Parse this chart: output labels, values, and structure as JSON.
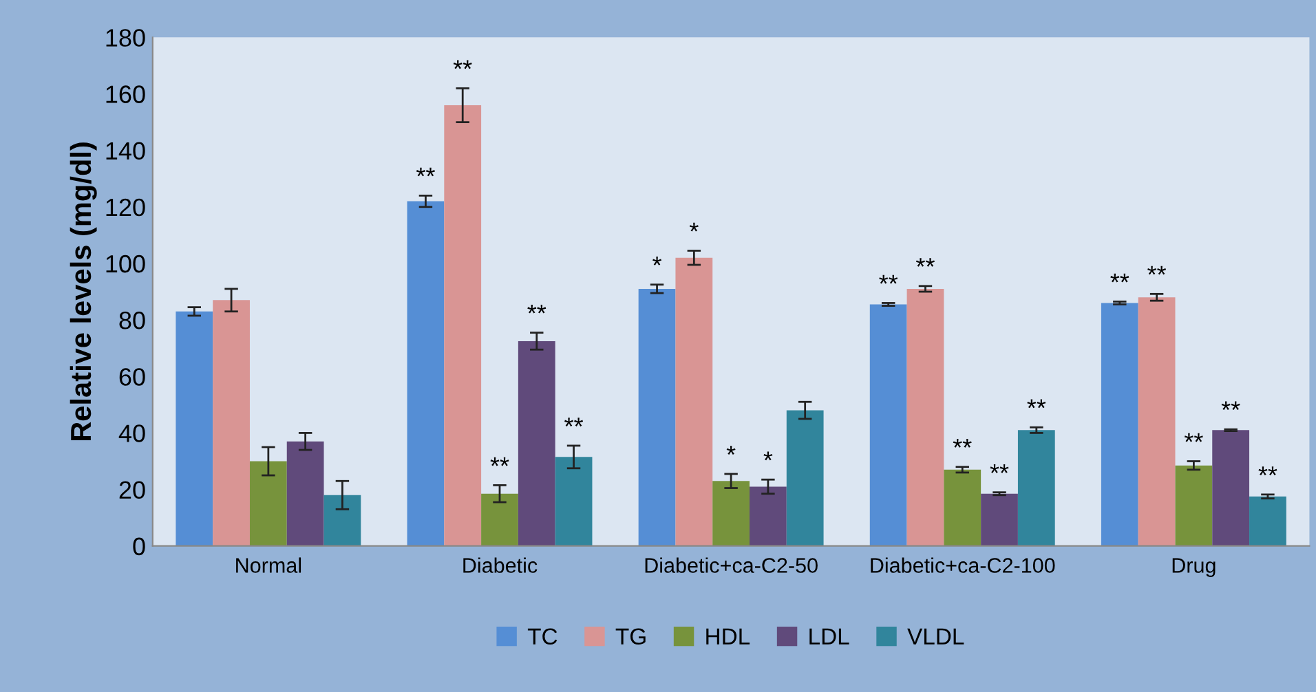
{
  "chart_data": {
    "type": "bar",
    "ylabel": "Relative levels (mg/dl)",
    "categories": [
      "Normal",
      "Diabetic",
      "Diabetic+ca-C2-50",
      "Diabetic+ca-C2-100",
      "Drug"
    ],
    "series": [
      {
        "name": "TC",
        "color": "#558ed5",
        "values": [
          83,
          122,
          91,
          85.5,
          86
        ],
        "errors": [
          1.5,
          2,
          1.5,
          0.5,
          0.5
        ],
        "value_labels": [
          null,
          "**",
          "*",
          "**",
          "**"
        ]
      },
      {
        "name": "TG",
        "color": "#d99594",
        "values": [
          87,
          156,
          102,
          91,
          88
        ],
        "errors": [
          4,
          6,
          2.5,
          1,
          1.2
        ],
        "value_labels": [
          null,
          "**",
          "*",
          "**",
          "**"
        ]
      },
      {
        "name": "HDL",
        "color": "#77933c",
        "values": [
          30,
          18.5,
          23,
          27,
          28.5
        ],
        "errors": [
          5,
          3,
          2.5,
          1,
          1.5
        ],
        "value_labels": [
          null,
          "**",
          "*",
          "**",
          "**"
        ]
      },
      {
        "name": "LDL",
        "color": "#604a7b",
        "values": [
          37,
          72.5,
          21,
          18.5,
          41
        ],
        "errors": [
          3,
          3,
          2.5,
          0.5,
          0.3
        ],
        "value_labels": [
          null,
          "**",
          "*",
          "**",
          "**"
        ]
      },
      {
        "name": "VLDL",
        "color": "#31859c",
        "values": [
          18,
          31.5,
          48,
          41,
          17.5
        ],
        "errors": [
          5,
          4,
          3,
          1,
          0.7
        ],
        "value_labels": [
          null,
          "**",
          null,
          "**",
          "**"
        ]
      }
    ],
    "ylim": [
      0,
      180
    ],
    "yticks": [
      0,
      20,
      40,
      60,
      80,
      100,
      120,
      140,
      160,
      180
    ],
    "grid": false,
    "legend": "bottom"
  }
}
